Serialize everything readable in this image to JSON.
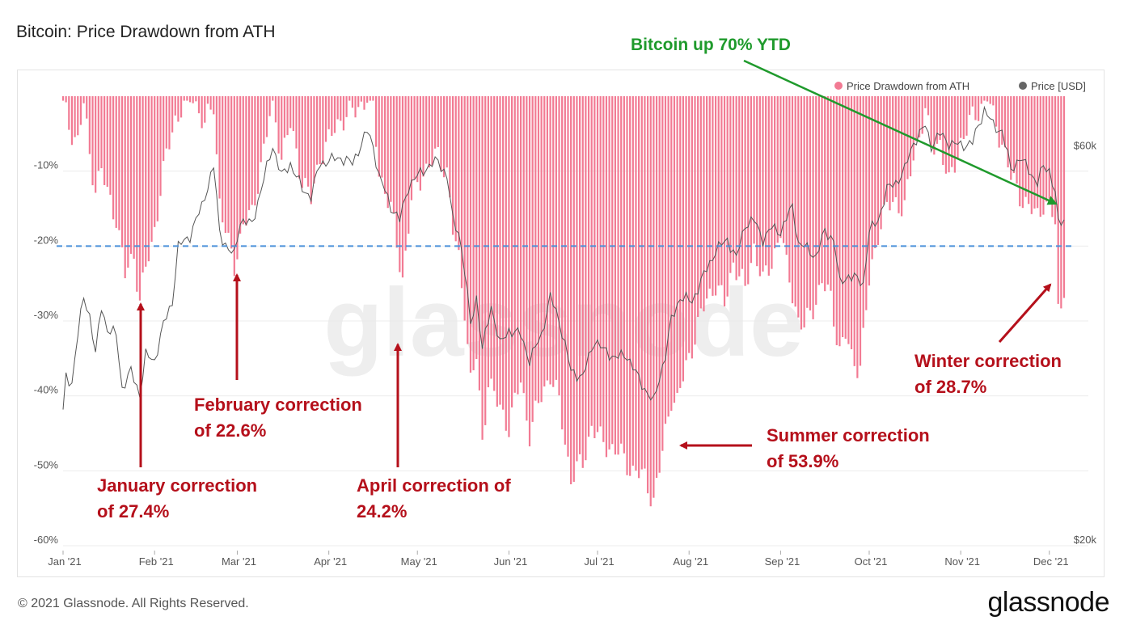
{
  "title": "Bitcoin: Price Drawdown from ATH",
  "footer": {
    "copyright": "© 2021 Glassnode. All Rights Reserved.",
    "brand": "glassnode"
  },
  "watermark": "glassnode",
  "colors": {
    "bar": "#f27a93",
    "price": "#555555",
    "dashed": "#4a90d9",
    "annotation_red": "#b5101b",
    "annotation_green": "#1f9a2c"
  },
  "chart_data": {
    "type": "bar",
    "title": "Bitcoin: Price Drawdown from ATH",
    "legend_position": "top-right",
    "series": [
      {
        "name": "Price Drawdown from ATH",
        "type": "bar",
        "color": "#f27a93"
      },
      {
        "name": "Price [USD]",
        "type": "line",
        "color": "#555555"
      }
    ],
    "x_axis": {
      "start": "2021-01-01",
      "end": "2021-12-06",
      "tick_labels": [
        "Jan '21",
        "Feb '21",
        "Mar '21",
        "Apr '21",
        "May '21",
        "Jun '21",
        "Jul '21",
        "Aug '21",
        "Sep '21",
        "Oct '21",
        "Nov '21",
        "Dec '21"
      ],
      "tick_dates": [
        "2021-01-01",
        "2021-02-01",
        "2021-03-01",
        "2021-04-01",
        "2021-05-01",
        "2021-06-01",
        "2021-07-01",
        "2021-08-01",
        "2021-09-01",
        "2021-10-01",
        "2021-11-01",
        "2021-12-01"
      ]
    },
    "y_left": {
      "ylim": [
        -60,
        0
      ],
      "unit": "%",
      "tick_values": [
        -10,
        -20,
        -30,
        -40,
        -50,
        -60
      ],
      "tick_labels": [
        "-10%",
        "-20%",
        "-30%",
        "-40%",
        "-50%",
        "-60%"
      ]
    },
    "y_right": {
      "scale": "log",
      "ylim": [
        20000,
        70000
      ],
      "tick_values": [
        60000,
        20000
      ],
      "tick_labels": [
        "$60k",
        "$20k"
      ]
    },
    "reference_line": {
      "y": -20,
      "style": "dashed"
    },
    "drawdown_keypoints": [
      [
        "2021-01-01",
        -1
      ],
      [
        "2021-01-03",
        -4
      ],
      [
        "2021-01-06",
        -6
      ],
      [
        "2021-01-08",
        -1
      ],
      [
        "2021-01-10",
        -8
      ],
      [
        "2021-01-12",
        -12
      ],
      [
        "2021-01-14",
        -10
      ],
      [
        "2021-01-16",
        -13
      ],
      [
        "2021-01-19",
        -16
      ],
      [
        "2021-01-22",
        -24
      ],
      [
        "2021-01-25",
        -21
      ],
      [
        "2021-01-27",
        -27.4
      ],
      [
        "2021-01-29",
        -23
      ],
      [
        "2021-01-31",
        -20
      ],
      [
        "2021-02-02",
        -15
      ],
      [
        "2021-02-05",
        -8
      ],
      [
        "2021-02-08",
        -3
      ],
      [
        "2021-02-11",
        -1
      ],
      [
        "2021-02-14",
        0
      ],
      [
        "2021-02-18",
        -4
      ],
      [
        "2021-02-21",
        -1
      ],
      [
        "2021-02-23",
        -14
      ],
      [
        "2021-02-26",
        -20
      ],
      [
        "2021-02-28",
        -22.6
      ],
      [
        "2021-03-03",
        -17
      ],
      [
        "2021-03-06",
        -16
      ],
      [
        "2021-03-09",
        -9
      ],
      [
        "2021-03-13",
        -1
      ],
      [
        "2021-03-16",
        -8
      ],
      [
        "2021-03-19",
        -4
      ],
      [
        "2021-03-23",
        -11
      ],
      [
        "2021-03-26",
        -14
      ],
      [
        "2021-03-29",
        -8
      ],
      [
        "2021-04-01",
        -6
      ],
      [
        "2021-04-05",
        -3
      ],
      [
        "2021-04-10",
        -2
      ],
      [
        "2021-04-14",
        0
      ],
      [
        "2021-04-16",
        -2
      ],
      [
        "2021-04-18",
        -10
      ],
      [
        "2021-04-22",
        -15
      ],
      [
        "2021-04-24",
        -20
      ],
      [
        "2021-04-26",
        -24.2
      ],
      [
        "2021-04-29",
        -14
      ],
      [
        "2021-05-03",
        -10
      ],
      [
        "2021-05-08",
        -8
      ],
      [
        "2021-05-11",
        -10
      ],
      [
        "2021-05-13",
        -18
      ],
      [
        "2021-05-15",
        -22
      ],
      [
        "2021-05-17",
        -28
      ],
      [
        "2021-05-19",
        -38
      ],
      [
        "2021-05-21",
        -35
      ],
      [
        "2021-05-23",
        -46
      ],
      [
        "2021-05-25",
        -38
      ],
      [
        "2021-05-28",
        -41
      ],
      [
        "2021-06-01",
        -44
      ],
      [
        "2021-06-05",
        -38
      ],
      [
        "2021-06-08",
        -45
      ],
      [
        "2021-06-12",
        -40
      ],
      [
        "2021-06-15",
        -37
      ],
      [
        "2021-06-18",
        -41
      ],
      [
        "2021-06-22",
        -51
      ],
      [
        "2021-06-26",
        -49
      ],
      [
        "2021-06-29",
        -44
      ],
      [
        "2021-07-02",
        -46
      ],
      [
        "2021-07-06",
        -47
      ],
      [
        "2021-07-09",
        -48
      ],
      [
        "2021-07-13",
        -50
      ],
      [
        "2021-07-17",
        -51
      ],
      [
        "2021-07-20",
        -53.9
      ],
      [
        "2021-07-22",
        -50
      ],
      [
        "2021-07-24",
        -45
      ],
      [
        "2021-07-26",
        -40
      ],
      [
        "2021-07-28",
        -41
      ],
      [
        "2021-07-31",
        -36
      ],
      [
        "2021-08-03",
        -32
      ],
      [
        "2021-08-07",
        -27
      ],
      [
        "2021-08-10",
        -25
      ],
      [
        "2021-08-13",
        -28
      ],
      [
        "2021-08-16",
        -22
      ],
      [
        "2021-08-20",
        -26
      ],
      [
        "2021-08-23",
        -20
      ],
      [
        "2021-08-26",
        -25
      ],
      [
        "2021-08-29",
        -22
      ],
      [
        "2021-09-01",
        -18
      ],
      [
        "2021-09-03",
        -23
      ],
      [
        "2021-09-05",
        -26
      ],
      [
        "2021-09-07",
        -30
      ],
      [
        "2021-09-09",
        -31
      ],
      [
        "2021-09-12",
        -28
      ],
      [
        "2021-09-15",
        -25
      ],
      [
        "2021-09-18",
        -27
      ],
      [
        "2021-09-21",
        -34
      ],
      [
        "2021-09-23",
        -32
      ],
      [
        "2021-09-25",
        -35
      ],
      [
        "2021-09-28",
        -36
      ],
      [
        "2021-10-01",
        -25
      ],
      [
        "2021-10-04",
        -18
      ],
      [
        "2021-10-07",
        -15
      ],
      [
        "2021-10-10",
        -14
      ],
      [
        "2021-10-13",
        -15
      ],
      [
        "2021-10-16",
        -8
      ],
      [
        "2021-10-20",
        -2
      ],
      [
        "2021-10-22",
        -7
      ],
      [
        "2021-10-25",
        -6
      ],
      [
        "2021-10-28",
        -12
      ],
      [
        "2021-11-01",
        -6
      ],
      [
        "2021-11-05",
        -3
      ],
      [
        "2021-11-10",
        0
      ],
      [
        "2021-11-12",
        -3
      ],
      [
        "2021-11-15",
        -6
      ],
      [
        "2021-11-18",
        -11
      ],
      [
        "2021-11-21",
        -13
      ],
      [
        "2021-11-24",
        -15
      ],
      [
        "2021-11-27",
        -16
      ],
      [
        "2021-11-29",
        -14
      ],
      [
        "2021-12-01",
        -15
      ],
      [
        "2021-12-03",
        -17
      ],
      [
        "2021-12-04",
        -28.7
      ],
      [
        "2021-12-05",
        -28
      ],
      [
        "2021-12-06",
        -25
      ]
    ],
    "price_keypoints": [
      [
        "2021-01-01",
        29000
      ],
      [
        "2021-01-02",
        32000
      ],
      [
        "2021-01-04",
        31500
      ],
      [
        "2021-01-06",
        36000
      ],
      [
        "2021-01-08",
        40000
      ],
      [
        "2021-01-10",
        38000
      ],
      [
        "2021-01-12",
        34000
      ],
      [
        "2021-01-14",
        39000
      ],
      [
        "2021-01-16",
        36500
      ],
      [
        "2021-01-19",
        36000
      ],
      [
        "2021-01-21",
        31000
      ],
      [
        "2021-01-24",
        32500
      ],
      [
        "2021-01-27",
        30500
      ],
      [
        "2021-01-29",
        34000
      ],
      [
        "2021-02-01",
        33500
      ],
      [
        "2021-02-04",
        37000
      ],
      [
        "2021-02-07",
        39500
      ],
      [
        "2021-02-09",
        46000
      ],
      [
        "2021-02-13",
        47500
      ],
      [
        "2021-02-17",
        51500
      ],
      [
        "2021-02-21",
        57500
      ],
      [
        "2021-02-23",
        48000
      ],
      [
        "2021-02-26",
        45500
      ],
      [
        "2021-02-28",
        45000
      ],
      [
        "2021-03-02",
        49500
      ],
      [
        "2021-03-06",
        49000
      ],
      [
        "2021-03-10",
        55500
      ],
      [
        "2021-03-13",
        61000
      ],
      [
        "2021-03-16",
        56000
      ],
      [
        "2021-03-19",
        58000
      ],
      [
        "2021-03-23",
        54000
      ],
      [
        "2021-03-26",
        53000
      ],
      [
        "2021-03-29",
        58000
      ],
      [
        "2021-04-01",
        58500
      ],
      [
        "2021-04-05",
        59000
      ],
      [
        "2021-04-09",
        58000
      ],
      [
        "2021-04-14",
        63500
      ],
      [
        "2021-04-16",
        61000
      ],
      [
        "2021-04-18",
        56000
      ],
      [
        "2021-04-22",
        51500
      ],
      [
        "2021-04-25",
        49500
      ],
      [
        "2021-04-28",
        54500
      ],
      [
        "2021-05-03",
        57000
      ],
      [
        "2021-05-08",
        58500
      ],
      [
        "2021-05-11",
        56000
      ],
      [
        "2021-05-13",
        49500
      ],
      [
        "2021-05-15",
        48000
      ],
      [
        "2021-05-17",
        43000
      ],
      [
        "2021-05-19",
        37000
      ],
      [
        "2021-05-21",
        40000
      ],
      [
        "2021-05-23",
        34500
      ],
      [
        "2021-05-26",
        39000
      ],
      [
        "2021-05-29",
        35000
      ],
      [
        "2021-06-01",
        36500
      ],
      [
        "2021-06-05",
        36000
      ],
      [
        "2021-06-08",
        33500
      ],
      [
        "2021-06-12",
        36000
      ],
      [
        "2021-06-15",
        40000
      ],
      [
        "2021-06-18",
        37500
      ],
      [
        "2021-06-22",
        32500
      ],
      [
        "2021-06-26",
        32000
      ],
      [
        "2021-06-30",
        35500
      ],
      [
        "2021-07-03",
        34500
      ],
      [
        "2021-07-07",
        33800
      ],
      [
        "2021-07-11",
        34000
      ],
      [
        "2021-07-15",
        31800
      ],
      [
        "2021-07-20",
        29800
      ],
      [
        "2021-07-22",
        32000
      ],
      [
        "2021-07-24",
        34000
      ],
      [
        "2021-07-26",
        37500
      ],
      [
        "2021-07-29",
        40000
      ],
      [
        "2021-08-02",
        39500
      ],
      [
        "2021-08-06",
        42500
      ],
      [
        "2021-08-10",
        45500
      ],
      [
        "2021-08-14",
        47000
      ],
      [
        "2021-08-17",
        44500
      ],
      [
        "2021-08-20",
        49000
      ],
      [
        "2021-08-23",
        49500
      ],
      [
        "2021-08-26",
        47000
      ],
      [
        "2021-08-29",
        48500
      ],
      [
        "2021-09-01",
        48000
      ],
      [
        "2021-09-05",
        51500
      ],
      [
        "2021-09-07",
        46500
      ],
      [
        "2021-09-09",
        46000
      ],
      [
        "2021-09-13",
        44800
      ],
      [
        "2021-09-16",
        48000
      ],
      [
        "2021-09-19",
        47000
      ],
      [
        "2021-09-21",
        41500
      ],
      [
        "2021-09-24",
        42500
      ],
      [
        "2021-09-27",
        42000
      ],
      [
        "2021-09-29",
        41500
      ],
      [
        "2021-10-01",
        48000
      ],
      [
        "2021-10-04",
        49500
      ],
      [
        "2021-10-07",
        54000
      ],
      [
        "2021-10-10",
        55000
      ],
      [
        "2021-10-13",
        57000
      ],
      [
        "2021-10-16",
        61500
      ],
      [
        "2021-10-20",
        64500
      ],
      [
        "2021-10-22",
        61000
      ],
      [
        "2021-10-25",
        63000
      ],
      [
        "2021-10-28",
        61500
      ],
      [
        "2021-11-01",
        61000
      ],
      [
        "2021-11-05",
        61500
      ],
      [
        "2021-11-09",
        67500
      ],
      [
        "2021-11-12",
        64500
      ],
      [
        "2021-11-15",
        63500
      ],
      [
        "2021-11-18",
        57000
      ],
      [
        "2021-11-21",
        59000
      ],
      [
        "2021-11-24",
        57000
      ],
      [
        "2021-11-27",
        55000
      ],
      [
        "2021-11-29",
        57500
      ],
      [
        "2021-12-01",
        57000
      ],
      [
        "2021-12-03",
        53500
      ],
      [
        "2021-12-04",
        49000
      ],
      [
        "2021-12-06",
        49500
      ]
    ]
  },
  "annotations": [
    {
      "id": "ytd",
      "lines": [
        "Bitcoin up 70% YTD"
      ],
      "color": "green"
    },
    {
      "id": "january",
      "lines": [
        "January correction",
        "of 27.4%"
      ],
      "color": "red"
    },
    {
      "id": "february",
      "lines": [
        "February correction",
        "of 22.6%"
      ],
      "color": "red"
    },
    {
      "id": "april",
      "lines": [
        "April correction of",
        "24.2%"
      ],
      "color": "red"
    },
    {
      "id": "summer",
      "lines": [
        "Summer correction",
        "of 53.9%"
      ],
      "color": "red"
    },
    {
      "id": "winter",
      "lines": [
        "Winter correction",
        "of 28.7%"
      ],
      "color": "red"
    }
  ]
}
